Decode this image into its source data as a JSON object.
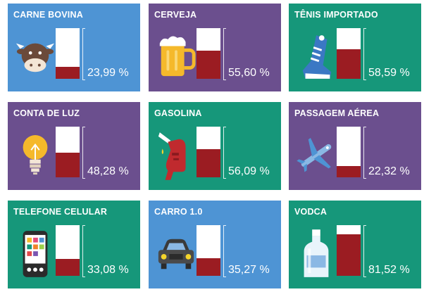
{
  "colors": {
    "blue": "#4e94d4",
    "purple": "#6b4f8e",
    "green": "#16977a",
    "fill": "#9b1c22"
  },
  "cards": [
    {
      "title": "CARNE BOVINA",
      "value": "23,99 %",
      "percent": 23.99,
      "color": "blue",
      "icon": "cow-icon"
    },
    {
      "title": "CERVEJA",
      "value": "55,60 %",
      "percent": 55.6,
      "color": "purple",
      "icon": "beer-mug-icon"
    },
    {
      "title": "TÊNIS IMPORTADO",
      "value": "58,59 %",
      "percent": 58.59,
      "color": "green",
      "icon": "sneaker-icon"
    },
    {
      "title": "CONTA DE LUZ",
      "value": "48,28 %",
      "percent": 48.28,
      "color": "purple",
      "icon": "light-bulb-icon"
    },
    {
      "title": "GASOLINA",
      "value": "56,09 %",
      "percent": 56.09,
      "color": "green",
      "icon": "fuel-nozzle-icon"
    },
    {
      "title": "PASSAGEM AÉREA",
      "value": "22,32 %",
      "percent": 22.32,
      "color": "purple",
      "icon": "airplane-icon"
    },
    {
      "title": "TELEFONE CELULAR",
      "value": "33,08 %",
      "percent": 33.08,
      "color": "green",
      "icon": "cell-phone-icon"
    },
    {
      "title": "CARRO 1.0",
      "value": "35,27 %",
      "percent": 35.27,
      "color": "blue",
      "icon": "car-icon"
    },
    {
      "title": "VODCA",
      "value": "81,52 %",
      "percent": 81.52,
      "color": "green",
      "icon": "vodka-bottle-icon"
    }
  ]
}
